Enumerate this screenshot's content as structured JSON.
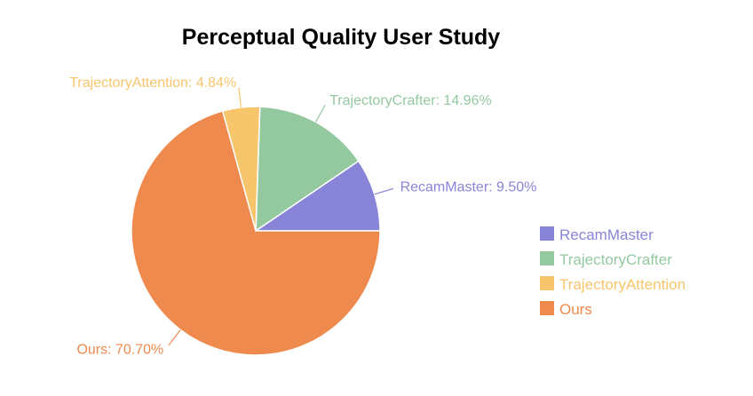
{
  "chart_data": {
    "type": "pie",
    "title": "Perceptual Quality User Study",
    "start_angle_deg": 0,
    "direction": "counterclockwise",
    "legend_position": "right",
    "series": [
      {
        "name": "RecamMaster",
        "value": 9.5,
        "label": "RecamMaster: 9.50%",
        "color": "#8884d8"
      },
      {
        "name": "TrajectoryCrafter",
        "value": 14.96,
        "label": "TrajectoryCrafter: 14.96%",
        "color": "#94c9a0"
      },
      {
        "name": "TrajectoryAttention",
        "value": 4.84,
        "label": "TrajectoryAttention: 4.84%",
        "color": "#f7c56b"
      },
      {
        "name": "Ours",
        "value": 70.7,
        "label": "Ours: 70.70%",
        "color": "#ef8a4f"
      }
    ]
  }
}
